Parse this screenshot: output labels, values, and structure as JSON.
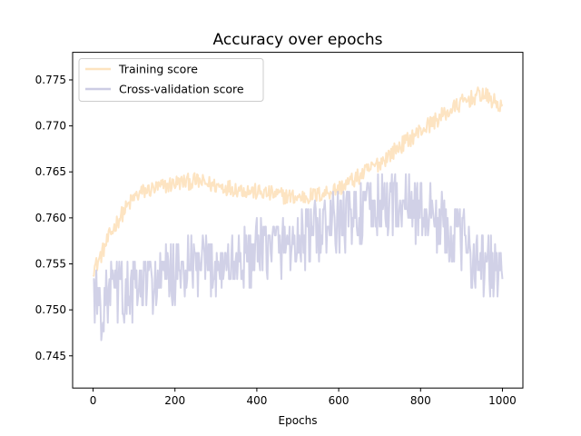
{
  "chart_data": {
    "type": "line",
    "title": "Accuracy over epochs",
    "xlabel": "Epochs",
    "ylabel": "",
    "xlim": [
      -50,
      1050
    ],
    "ylim": [
      0.7415,
      0.778
    ],
    "x_ticks": [
      0,
      200,
      400,
      600,
      800,
      1000
    ],
    "y_ticks": [
      0.745,
      0.75,
      0.755,
      0.76,
      0.765,
      0.77,
      0.775
    ],
    "grid": false,
    "legend_position": "upper-left",
    "series": [
      {
        "name": "Training score",
        "color": "#fde3bf",
        "epochs": [
          0,
          10,
          20,
          40,
          60,
          80,
          100,
          120,
          150,
          180,
          200,
          250,
          300,
          350,
          400,
          450,
          500,
          550,
          600,
          650,
          700,
          750,
          800,
          850,
          900,
          950,
          1000
        ],
        "values": [
          0.7545,
          0.755,
          0.756,
          0.758,
          0.7597,
          0.761,
          0.7622,
          0.7628,
          0.7632,
          0.7635,
          0.7638,
          0.764,
          0.7635,
          0.7632,
          0.7628,
          0.7625,
          0.7622,
          0.7625,
          0.7632,
          0.7645,
          0.766,
          0.7678,
          0.7695,
          0.771,
          0.7725,
          0.7735,
          0.772
        ],
        "noise": 0.0009
      },
      {
        "name": "Cross-validation score",
        "color": "#cccce4",
        "epochs": [
          0,
          10,
          20,
          40,
          60,
          80,
          100,
          120,
          150,
          180,
          200,
          250,
          300,
          350,
          400,
          450,
          500,
          550,
          600,
          650,
          700,
          750,
          800,
          850,
          900,
          950,
          1000
        ],
        "values": [
          0.753,
          0.751,
          0.75,
          0.752,
          0.7522,
          0.7518,
          0.752,
          0.7525,
          0.753,
          0.7535,
          0.7538,
          0.7545,
          0.7548,
          0.7552,
          0.756,
          0.757,
          0.7575,
          0.7585,
          0.7595,
          0.7605,
          0.7612,
          0.7618,
          0.761,
          0.7595,
          0.7575,
          0.755,
          0.754
        ],
        "noise": 0.0018
      }
    ]
  }
}
